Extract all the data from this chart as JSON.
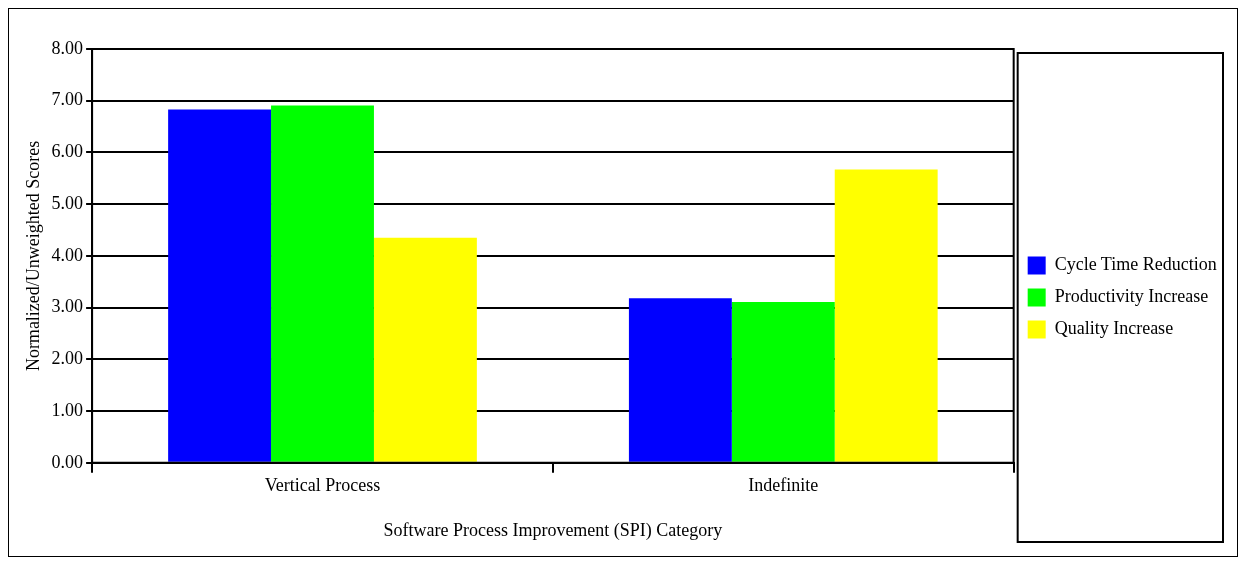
{
  "chart_data": {
    "type": "bar",
    "xlabel": "Software Process Improvement (SPI) Category",
    "ylabel": "Normalized/Unweighted Scores",
    "categories": [
      "Vertical Process",
      "Indefinite"
    ],
    "series": [
      {
        "name": "Cycle Time Reduction",
        "color": "#0000ff",
        "values": [
          6.83,
          3.18
        ]
      },
      {
        "name": "Productivity Increase",
        "color": "#00ff00",
        "values": [
          6.91,
          3.11
        ]
      },
      {
        "name": "Quality Increase",
        "color": "#ffff00",
        "values": [
          4.35,
          5.67
        ]
      }
    ],
    "ylim": [
      0,
      8
    ],
    "yticks": [
      {
        "value": 0,
        "label": "0.00"
      },
      {
        "value": 1,
        "label": "1.00"
      },
      {
        "value": 2,
        "label": "2.00"
      },
      {
        "value": 3,
        "label": "3.00"
      },
      {
        "value": 4,
        "label": "4.00"
      },
      {
        "value": 5,
        "label": "5.00"
      },
      {
        "value": 6,
        "label": "6.00"
      },
      {
        "value": 7,
        "label": "7.00"
      },
      {
        "value": 8,
        "label": "8.00"
      }
    ],
    "grid": "y",
    "legend": "right"
  }
}
